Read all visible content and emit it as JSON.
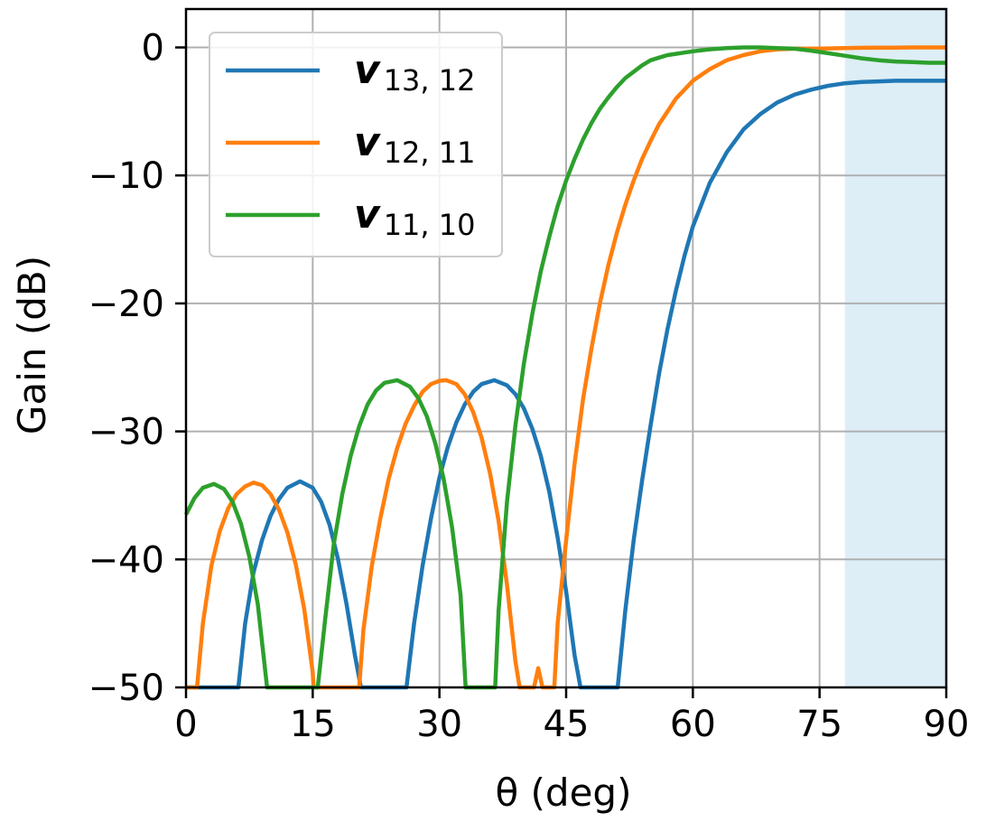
{
  "chart_data": {
    "type": "line",
    "title": "",
    "xlabel": "θ (deg)",
    "ylabel": "Gain (dB)",
    "xlim": [
      0,
      90
    ],
    "ylim": [
      -50,
      3
    ],
    "xticks": [
      "0",
      "15",
      "30",
      "45",
      "60",
      "75",
      "90"
    ],
    "yticks": [
      "0",
      "−10",
      "−20",
      "−30",
      "−40",
      "−50"
    ],
    "grid": true,
    "legend_position": "top-left",
    "shaded_region": {
      "x_start": 78,
      "x_end": 90,
      "color": "#ddeef6"
    },
    "series": [
      {
        "name": "v",
        "subscript": "13, 12",
        "color": "#1f77b4",
        "x": [
          0,
          6.2,
          7,
          8,
          9,
          10,
          11,
          12,
          13.5,
          15,
          16,
          17,
          18,
          19,
          20,
          20.7,
          26.1,
          27,
          28,
          29,
          30,
          31,
          32,
          33,
          34,
          35,
          36.5,
          38,
          39,
          40,
          41,
          42,
          43,
          44,
          45,
          46,
          46.7,
          51.1,
          52,
          53,
          54,
          55,
          56,
          57,
          58,
          59,
          60,
          62,
          64,
          66,
          68,
          70,
          72,
          74,
          76,
          78,
          80,
          82,
          84,
          86,
          88,
          90
        ],
        "y": [
          -50,
          -50,
          -45,
          -41,
          -38.5,
          -36.6,
          -35.3,
          -34.4,
          -33.9,
          -34.4,
          -35.5,
          -37.3,
          -40,
          -43.5,
          -47.5,
          -50,
          -50,
          -45,
          -40.5,
          -36.8,
          -33.6,
          -31.2,
          -29.3,
          -27.9,
          -26.9,
          -26.3,
          -26,
          -26.4,
          -27.1,
          -28.2,
          -29.8,
          -31.9,
          -34.7,
          -38.3,
          -42.5,
          -47.5,
          -50,
          -50,
          -44,
          -38.5,
          -33.8,
          -29.5,
          -25.5,
          -22,
          -19,
          -16.3,
          -14,
          -10.6,
          -8.2,
          -6.4,
          -5.2,
          -4.3,
          -3.7,
          -3.3,
          -3,
          -2.8,
          -2.7,
          -2.65,
          -2.6,
          -2.6,
          -2.6,
          -2.6
        ]
      },
      {
        "name": "v",
        "subscript": "12, 11",
        "color": "#ff7f0e",
        "x": [
          0,
          1.3,
          2,
          3,
          4,
          5,
          6,
          7,
          8,
          9,
          10,
          11,
          12,
          13,
          14,
          15,
          15.1,
          20.5,
          21,
          22,
          23,
          24,
          25,
          26,
          27,
          28,
          29,
          30,
          30.8,
          32,
          33,
          34,
          35,
          36,
          37,
          38,
          39,
          39.5,
          41.2,
          41.7,
          42.2,
          43.6,
          44,
          45,
          46,
          47,
          48,
          49,
          50,
          51,
          52,
          53,
          54,
          55,
          56,
          57,
          58,
          59,
          60,
          62,
          64,
          66,
          68,
          70,
          72,
          74,
          76,
          78,
          80,
          82,
          84,
          86,
          88,
          90
        ],
        "y": [
          -50,
          -50,
          -45,
          -40.5,
          -37.8,
          -36,
          -34.9,
          -34.3,
          -34,
          -34.2,
          -34.9,
          -36.1,
          -37.9,
          -40.4,
          -43.9,
          -48.8,
          -50,
          -50,
          -45.5,
          -40.5,
          -36.8,
          -33.7,
          -31.3,
          -29.4,
          -28,
          -26.9,
          -26.3,
          -26.05,
          -26,
          -26.3,
          -27.1,
          -28.5,
          -30.5,
          -33.3,
          -37,
          -42,
          -48,
          -50,
          -50,
          -48.5,
          -50,
          -50,
          -45,
          -38.5,
          -32.5,
          -27.5,
          -23.5,
          -20,
          -17,
          -14.5,
          -12.3,
          -10.4,
          -8.7,
          -7.3,
          -6,
          -5,
          -4,
          -3.3,
          -2.6,
          -1.7,
          -1,
          -0.6,
          -0.3,
          -0.15,
          -0.1,
          -0.1,
          -0.08,
          -0.05,
          -0.03,
          -0.02,
          -0.01,
          0,
          0,
          0
        ]
      },
      {
        "name": "v",
        "subscript": "11, 10",
        "color": "#2ca02c",
        "x": [
          0,
          1,
          2,
          3.3,
          4.5,
          5.5,
          6.5,
          7.5,
          8.5,
          9.6,
          15.6,
          16.5,
          17.5,
          18.5,
          19.5,
          20.5,
          21.5,
          22.5,
          23.5,
          25,
          26.5,
          27.5,
          28.5,
          29.5,
          30.5,
          31.5,
          32.5,
          33.1,
          36.6,
          37,
          38,
          39,
          40,
          41,
          42,
          43,
          44,
          45,
          46,
          47,
          48,
          49,
          50,
          51,
          52,
          53,
          54,
          55,
          56,
          57,
          58,
          59,
          60,
          62,
          64,
          66,
          68,
          70,
          72,
          74,
          76,
          78,
          80,
          82,
          84,
          86,
          88,
          90
        ],
        "y": [
          -36.5,
          -35.2,
          -34.4,
          -34.1,
          -34.5,
          -35.5,
          -37.2,
          -39.8,
          -43.5,
          -50,
          -50,
          -44.5,
          -38.8,
          -34.9,
          -31.9,
          -29.6,
          -27.9,
          -26.8,
          -26.2,
          -26,
          -26.5,
          -27.4,
          -28.8,
          -30.9,
          -33.7,
          -37.5,
          -42.8,
          -50,
          -50,
          -44,
          -35.5,
          -29.5,
          -24.7,
          -20.8,
          -17.5,
          -14.8,
          -12.4,
          -10.4,
          -8.7,
          -7.2,
          -5.9,
          -4.8,
          -3.9,
          -3.1,
          -2.4,
          -1.9,
          -1.4,
          -1,
          -0.8,
          -0.6,
          -0.5,
          -0.4,
          -0.3,
          -0.15,
          -0.05,
          0,
          0,
          -0.05,
          -0.1,
          -0.25,
          -0.45,
          -0.65,
          -0.85,
          -1,
          -1.1,
          -1.15,
          -1.2,
          -1.2
        ]
      }
    ]
  }
}
